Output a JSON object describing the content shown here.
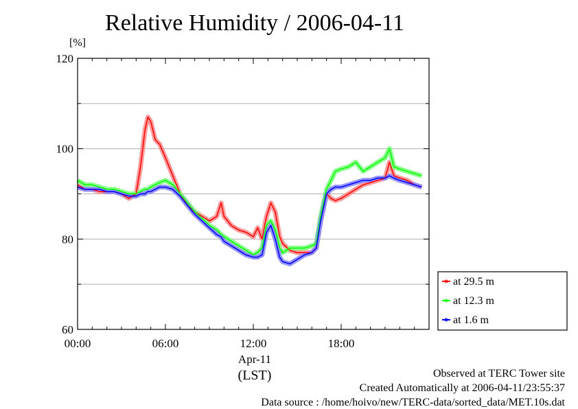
{
  "chart_data": {
    "type": "line",
    "title": "Relative Humidity / 2006-04-11",
    "ylabel": "[%]",
    "xlabel": "(LST)",
    "x_date_label": "Apr-11",
    "x_ticks": [
      "00:00",
      "06:00",
      "12:00",
      "18:00"
    ],
    "y_ticks": [
      60,
      80,
      100,
      120
    ],
    "xlim": [
      0,
      24
    ],
    "ylim": [
      60,
      120
    ],
    "grid": "horizontal",
    "legend": "lower-right, outside plot",
    "x": [
      0,
      0.5,
      1,
      1.5,
      2,
      2.5,
      3,
      3.5,
      4,
      4.3,
      4.6,
      4.8,
      5,
      5.3,
      5.6,
      6,
      6.5,
      7,
      7.5,
      8,
      8.5,
      9,
      9.5,
      9.8,
      10,
      10.5,
      11,
      11.5,
      12,
      12.3,
      12.6,
      12.9,
      13.2,
      13.5,
      13.8,
      14,
      14.5,
      15,
      15.5,
      16,
      16.3,
      16.6,
      17,
      17.3,
      17.6,
      18,
      18.5,
      19,
      19.5,
      20,
      20.5,
      21,
      21.3,
      21.6,
      22,
      22.5,
      23,
      23.5
    ],
    "series": [
      {
        "name": "at 29.5 m",
        "color": "#ff0000",
        "values": [
          92,
          91,
          91,
          90.5,
          90.5,
          90.5,
          90,
          89,
          90,
          96,
          104,
          107,
          106,
          102,
          101,
          98,
          94,
          90,
          87.5,
          86,
          85,
          84,
          85,
          88,
          85,
          83,
          82,
          81.5,
          80.5,
          82.5,
          80,
          85,
          88,
          86,
          80.5,
          79,
          77.5,
          77,
          77,
          77,
          78,
          84,
          90,
          89,
          88.5,
          89,
          90,
          91,
          92,
          92.5,
          93,
          93.5,
          97,
          94,
          93.5,
          93,
          92,
          91.5
        ]
      },
      {
        "name": "at 12.3 m",
        "color": "#00ff00",
        "values": [
          93,
          92,
          92,
          91.5,
          91,
          91,
          90.5,
          90,
          90,
          90.5,
          91,
          91,
          91.5,
          92,
          92.5,
          93,
          92,
          90,
          88,
          86,
          84.5,
          83,
          82,
          81,
          80.5,
          79.5,
          78.5,
          77.5,
          76.5,
          77,
          78,
          83,
          84,
          82,
          78,
          77,
          78,
          78,
          78,
          78.5,
          79,
          85,
          91,
          93,
          95,
          95.5,
          96,
          97,
          95,
          96,
          97,
          98,
          100,
          96,
          95.5,
          95,
          94.5,
          94
        ]
      },
      {
        "name": "at 1.6 m",
        "color": "#0000ff",
        "values": [
          91.5,
          91,
          91,
          91,
          90.5,
          90.5,
          90,
          89.5,
          89.5,
          90,
          90,
          90.5,
          90.5,
          91,
          91.5,
          91.5,
          91,
          89.5,
          87.5,
          85.5,
          84,
          82.5,
          81,
          80.5,
          79.5,
          78.5,
          77.5,
          76.5,
          76,
          76,
          76.5,
          81.5,
          83,
          80,
          76,
          75,
          74.5,
          75.5,
          76.5,
          77,
          78,
          84,
          90,
          91,
          91.5,
          91.5,
          92,
          92.5,
          93,
          93,
          93.5,
          93.5,
          94,
          93.5,
          93,
          92.5,
          92,
          91.5
        ]
      }
    ]
  },
  "footer": {
    "line1": "Observed at TERC Tower site",
    "line2": "Created Automatically at 2006-04-11/23:55:37",
    "line3": "Data source : /home/hoivo/new/TERC-data/sorted_data/MET.10s.dat"
  }
}
